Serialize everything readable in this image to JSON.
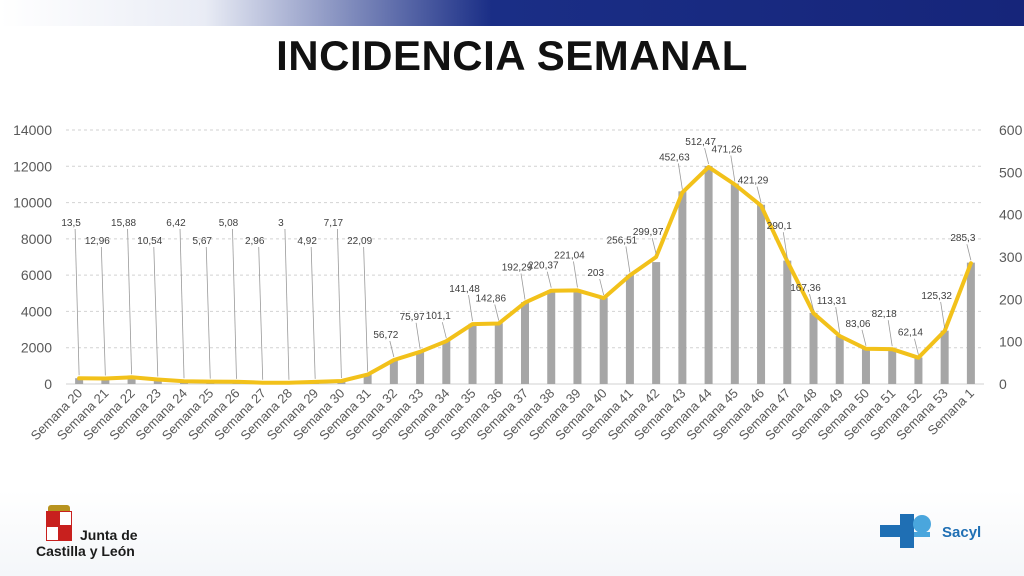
{
  "title": "INCIDENCIA SEMANAL",
  "logos": {
    "left_line1": "Junta de",
    "left_line2": "Castilla y León",
    "right_text": "Sacyl"
  },
  "colors": {
    "bar": "#a6a6a6",
    "line": "#f2c11a",
    "grid": "#d2d2d2",
    "axis_text": "#595959",
    "label_text": "#404040"
  },
  "chart_data": {
    "type": "bar",
    "categories": [
      "Semana 20",
      "Semana 21",
      "Semana 22",
      "Semana 23",
      "Semana 24",
      "Semana 25",
      "Semana 26",
      "Semana 27",
      "Semana 28",
      "Semana 29",
      "Semana 30",
      "Semana 31",
      "Semana 32",
      "Semana 33",
      "Semana 34",
      "Semana 35",
      "Semana 36",
      "Semana 37",
      "Semana 38",
      "Semana 39",
      "Semana 40",
      "Semana 41",
      "Semana 42",
      "Semana 43",
      "Semana 44",
      "Semana 45",
      "Semana 46",
      "Semana 47",
      "Semana 48",
      "Semana 49",
      "Semana 50",
      "Semana 51",
      "Semana 52",
      "Semana 53",
      "Semana 1"
    ],
    "series": [
      {
        "type": "bar",
        "axis": "left",
        "values": [
          320,
          300,
          370,
          250,
          150,
          130,
          120,
          70,
          70,
          120,
          170,
          520,
          1330,
          1780,
          2370,
          3320,
          3350,
          4510,
          5170,
          5160,
          4760,
          6020,
          6720,
          10620,
          12020,
          11050,
          9880,
          6800,
          3920,
          2650,
          1950,
          1930,
          1460,
          2940,
          6690
        ]
      },
      {
        "type": "line",
        "axis": "right",
        "values": [
          13.5,
          12.96,
          15.88,
          10.54,
          6.42,
          5.67,
          5.08,
          2.96,
          3,
          4.92,
          7.17,
          22.09,
          56.72,
          75.97,
          101.1,
          141.48,
          142.86,
          192.29,
          220.37,
          221.04,
          203,
          256.51,
          299.97,
          452.63,
          512.47,
          471.26,
          421.29,
          290.1,
          167.36,
          113.31,
          83.06,
          82.18,
          62.14,
          125.32,
          285.3
        ],
        "labels": [
          "13,5",
          "12,96",
          "15,88",
          "10,54",
          "6,42",
          "5,67",
          "5,08",
          "2,96",
          "3",
          "4,92",
          "7,17",
          "22,09",
          "56,72",
          "75,97",
          "101,1",
          "141,48",
          "142,86",
          "192,29",
          "220,37",
          "221,04",
          "203",
          "256,51",
          "299,97",
          "452,63",
          "512,47",
          "471,26",
          "421,29",
          "290,1",
          "167,36",
          "113,31",
          "83,06",
          "82,18",
          "62,14",
          "125,32",
          "285,3"
        ]
      }
    ],
    "y_left": {
      "ylim": [
        0,
        14000
      ],
      "ticks": [
        "0",
        "2000",
        "4000",
        "6000",
        "8000",
        "10000",
        "12000",
        "14000"
      ]
    },
    "y_right": {
      "ylim": [
        0,
        600
      ],
      "ticks": [
        "0",
        "100",
        "200",
        "300",
        "400",
        "500",
        "600"
      ]
    },
    "grid": true,
    "legend": "none"
  }
}
